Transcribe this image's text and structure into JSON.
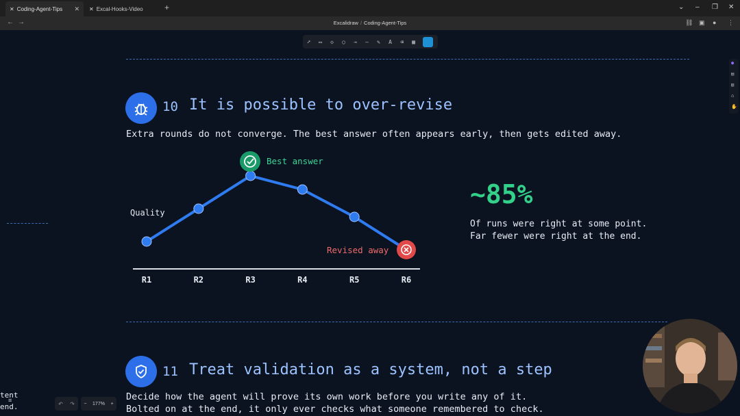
{
  "browser": {
    "tabs": [
      {
        "label": "Coding-Agent-Tips",
        "icon": "excalidraw-icon",
        "active": true
      },
      {
        "label": "Excal-Hooks-Video",
        "icon": "excalidraw-icon",
        "active": false
      }
    ],
    "title": {
      "app": "Excalidraw",
      "separator": "/",
      "doc": "Coding-Agent-Tips"
    }
  },
  "toolbar": {
    "tools": [
      "select-tool",
      "rectangle-tool",
      "diamond-tool",
      "ellipse-tool",
      "arrow-tool",
      "line-tool",
      "pencil-tool",
      "text-tool",
      "eraser-tool",
      "frame-tool",
      "active-tool"
    ]
  },
  "section10": {
    "number": "10",
    "title": "It is possible to over-revise",
    "subtitle": "Extra rounds do not converge. The best answer often appears early, then gets edited away.",
    "best_label": "Best answer",
    "revised_label": "Revised away",
    "quality_label": "Quality",
    "stat_value": "~85%",
    "stat_line1": "Of runs were right at some point.",
    "stat_line2": "Far fewer were right at the end."
  },
  "chart_data": {
    "type": "line",
    "categories": [
      "R1",
      "R2",
      "R3",
      "R4",
      "R5",
      "R6"
    ],
    "series": [
      {
        "values": [
          1.0,
          2.2,
          3.4,
          2.9,
          1.9,
          0.7
        ]
      }
    ],
    "ylabel": "Quality",
    "annotations": [
      {
        "category": "R3",
        "text": "Best answer"
      },
      {
        "category": "R6",
        "text": "Revised away"
      }
    ],
    "colors": {
      "line": "#2f7bf0",
      "best": "#1aa06b",
      "revised": "#e24a4a"
    }
  },
  "section11": {
    "number": "11",
    "title": "Treat validation as a system, not a step",
    "line1": "Decide how the agent will prove its own work before you write any of it.",
    "line2": "Bolted on at the end, it only ever checks what someone remembered to check."
  },
  "canvas": {
    "zoom": "177%",
    "cutoff_text1": "tent",
    "cutoff_text2": "end."
  },
  "colors": {
    "background": "#0b1220",
    "accent": "#2d6fe8",
    "stat": "#33d08a",
    "heading": "#9cc3ff"
  }
}
